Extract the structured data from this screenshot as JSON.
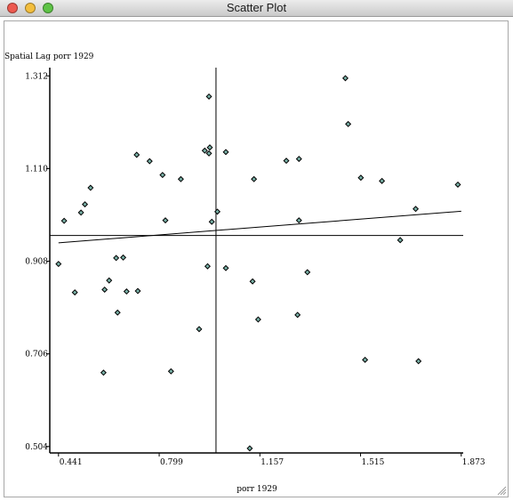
{
  "window": {
    "title": "Scatter Plot",
    "buttons": [
      {
        "name": "close",
        "color": "#ed594f"
      },
      {
        "name": "minimize",
        "color": "#f3be3d"
      },
      {
        "name": "zoom",
        "color": "#5ec346"
      }
    ]
  },
  "chart_data": {
    "type": "scatter",
    "xlabel": "porr 1929",
    "ylabel": "Spatial Lag porr 1929",
    "xlim": [
      0.41,
      1.88
    ],
    "ylim": [
      0.49,
      1.33
    ],
    "x_ticks": [
      "0.441",
      "0.799",
      "1.157",
      "1.515",
      "1.873"
    ],
    "y_ticks": [
      "0.504",
      "0.706",
      "0.908",
      "1.110",
      "1.312"
    ],
    "mean_lines": {
      "x": 1.001,
      "y": 0.964
    },
    "regression": {
      "x": [
        0.441,
        1.873
      ],
      "y": [
        0.948,
        1.017
      ]
    },
    "marker_color": "#78b0a6",
    "points": [
      [
        0.441,
        0.902
      ],
      [
        0.461,
        0.996
      ],
      [
        0.499,
        0.84
      ],
      [
        0.521,
        1.014
      ],
      [
        0.535,
        1.032
      ],
      [
        0.555,
        1.068
      ],
      [
        0.601,
        0.665
      ],
      [
        0.605,
        0.846
      ],
      [
        0.621,
        0.866
      ],
      [
        0.646,
        0.915
      ],
      [
        0.651,
        0.796
      ],
      [
        0.671,
        0.916
      ],
      [
        0.683,
        0.842
      ],
      [
        0.719,
        1.14
      ],
      [
        0.723,
        0.843
      ],
      [
        0.765,
        1.126
      ],
      [
        0.811,
        1.096
      ],
      [
        0.821,
        0.997
      ],
      [
        0.841,
        0.668
      ],
      [
        0.876,
        1.087
      ],
      [
        0.941,
        0.76
      ],
      [
        0.961,
        1.149
      ],
      [
        0.971,
        0.897
      ],
      [
        0.976,
        1.143
      ],
      [
        0.976,
        1.267
      ],
      [
        0.979,
        1.156
      ],
      [
        0.986,
        0.994
      ],
      [
        1.006,
        1.016
      ],
      [
        1.036,
        0.893
      ],
      [
        1.036,
        1.146
      ],
      [
        1.121,
        0.5
      ],
      [
        1.131,
        0.864
      ],
      [
        1.136,
        1.087
      ],
      [
        1.151,
        0.781
      ],
      [
        1.251,
        1.127
      ],
      [
        1.291,
        0.791
      ],
      [
        1.296,
        1.131
      ],
      [
        1.296,
        0.997
      ],
      [
        1.326,
        0.884
      ],
      [
        1.461,
        1.307
      ],
      [
        1.471,
        1.207
      ],
      [
        1.516,
        1.09
      ],
      [
        1.531,
        0.693
      ],
      [
        1.591,
        1.083
      ],
      [
        1.656,
        0.954
      ],
      [
        1.711,
        1.022
      ],
      [
        1.721,
        0.69
      ],
      [
        1.861,
        1.075
      ]
    ]
  }
}
